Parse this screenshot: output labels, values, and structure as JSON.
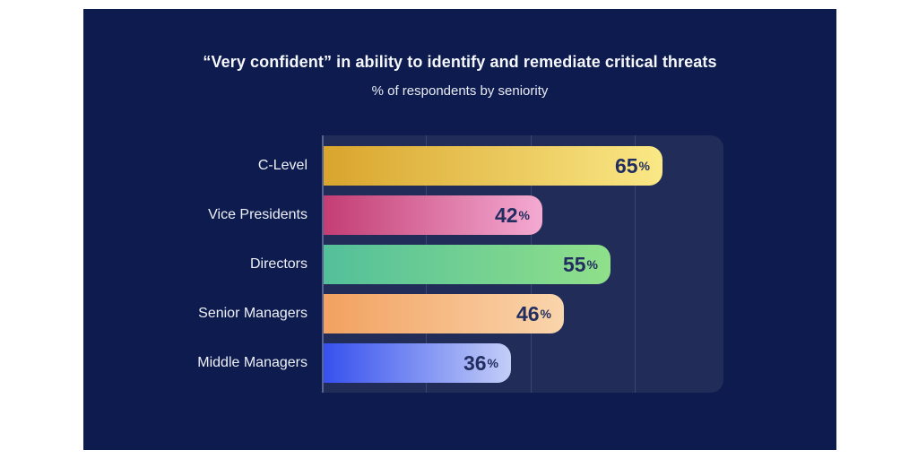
{
  "page": {
    "background": "#ffffff",
    "panel_background": "#0d1b4f"
  },
  "chart_data": {
    "type": "bar",
    "orientation": "horizontal",
    "title": "“Very confident” in ability to identify and remediate critical threats",
    "subtitle": "% of respondents by seniority",
    "categories": [
      "C-Level",
      "Vice Presidents",
      "Directors",
      "Senior Managers",
      "Middle Managers"
    ],
    "values": [
      65,
      42,
      55,
      46,
      36
    ],
    "value_suffix": "%",
    "xlim": [
      0,
      77
    ],
    "gridlines": [
      20,
      40,
      60
    ],
    "grid": true,
    "legend_position": "none",
    "colors": {
      "plot_background": "#212c58",
      "gridline": "#3b466f",
      "axis_line": "#5a6490",
      "title": "#f5f7fb",
      "subtitle": "#e9ecf4",
      "category_label": "#eef1f7",
      "value_label": "#232e60",
      "bar_gradients": [
        {
          "name": "gold",
          "from": "#d9a52d",
          "to": "#fae886"
        },
        {
          "name": "pink",
          "from": "#c33d73",
          "to": "#f4aad2"
        },
        {
          "name": "green",
          "from": "#53c09a",
          "to": "#90e08a"
        },
        {
          "name": "orange",
          "from": "#f2a160",
          "to": "#fad5ac"
        },
        {
          "name": "blue",
          "from": "#3650ee",
          "to": "#c3cef8"
        }
      ]
    }
  }
}
